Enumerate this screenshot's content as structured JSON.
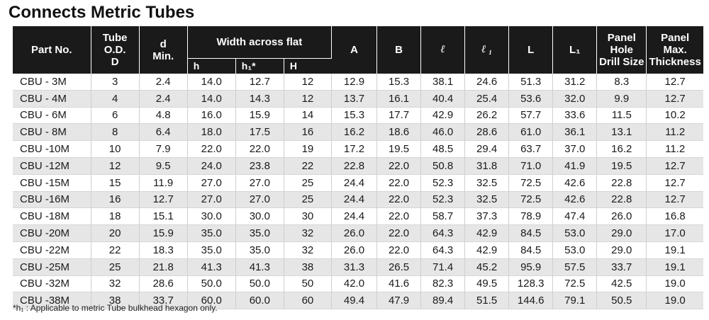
{
  "title": "Connects Metric Tubes",
  "headers": {
    "part_no": "Part No.",
    "tube_od": [
      "Tube",
      "O.D.",
      "D"
    ],
    "d_min": [
      "d",
      "Min."
    ],
    "width_across_flat": "Width across flat",
    "h": "h",
    "h1": "h₁*",
    "H": "H",
    "A": "A",
    "B": "B",
    "l": "ℓ",
    "l1": "ℓ ₁",
    "L": "L",
    "L1": "L₁",
    "panel_hole": [
      "Panel",
      "Hole",
      "Drill Size"
    ],
    "panel_max": [
      "Panel",
      "Max.",
      "Thickness"
    ]
  },
  "rows": [
    [
      "CBU - 3M",
      "3",
      "2.4",
      "14.0",
      "12.7",
      "12",
      "12.9",
      "15.3",
      "38.1",
      "24.6",
      "51.3",
      "31.2",
      "8.3",
      "12.7"
    ],
    [
      "CBU - 4M",
      "4",
      "2.4",
      "14.0",
      "14.3",
      "12",
      "13.7",
      "16.1",
      "40.4",
      "25.4",
      "53.6",
      "32.0",
      "9.9",
      "12.7"
    ],
    [
      "CBU - 6M",
      "6",
      "4.8",
      "16.0",
      "15.9",
      "14",
      "15.3",
      "17.7",
      "42.9",
      "26.2",
      "57.7",
      "33.6",
      "11.5",
      "10.2"
    ],
    [
      "CBU - 8M",
      "8",
      "6.4",
      "18.0",
      "17.5",
      "16",
      "16.2",
      "18.6",
      "46.0",
      "28.6",
      "61.0",
      "36.1",
      "13.1",
      "11.2"
    ],
    [
      "CBU -10M",
      "10",
      "7.9",
      "22.0",
      "22.0",
      "19",
      "17.2",
      "19.5",
      "48.5",
      "29.4",
      "63.7",
      "37.0",
      "16.2",
      "11.2"
    ],
    [
      "CBU -12M",
      "12",
      "9.5",
      "24.0",
      "23.8",
      "22",
      "22.8",
      "22.0",
      "50.8",
      "31.8",
      "71.0",
      "41.9",
      "19.5",
      "12.7"
    ],
    [
      "CBU -15M",
      "15",
      "11.9",
      "27.0",
      "27.0",
      "25",
      "24.4",
      "22.0",
      "52.3",
      "32.5",
      "72.5",
      "42.6",
      "22.8",
      "12.7"
    ],
    [
      "CBU -16M",
      "16",
      "12.7",
      "27.0",
      "27.0",
      "25",
      "24.4",
      "22.0",
      "52.3",
      "32.5",
      "72.5",
      "42.6",
      "22.8",
      "12.7"
    ],
    [
      "CBU -18M",
      "18",
      "15.1",
      "30.0",
      "30.0",
      "30",
      "24.4",
      "22.0",
      "58.7",
      "37.3",
      "78.9",
      "47.4",
      "26.0",
      "16.8"
    ],
    [
      "CBU -20M",
      "20",
      "15.9",
      "35.0",
      "35.0",
      "32",
      "26.0",
      "22.0",
      "64.3",
      "42.9",
      "84.5",
      "53.0",
      "29.0",
      "17.0"
    ],
    [
      "CBU -22M",
      "22",
      "18.3",
      "35.0",
      "35.0",
      "32",
      "26.0",
      "22.0",
      "64.3",
      "42.9",
      "84.5",
      "53.0",
      "29.0",
      "19.1"
    ],
    [
      "CBU -25M",
      "25",
      "21.8",
      "41.3",
      "41.3",
      "38",
      "31.3",
      "26.5",
      "71.4",
      "45.2",
      "95.9",
      "57.5",
      "33.7",
      "19.1"
    ],
    [
      "CBU -32M",
      "32",
      "28.6",
      "50.0",
      "50.0",
      "50",
      "42.0",
      "41.6",
      "82.3",
      "49.5",
      "128.3",
      "72.5",
      "42.5",
      "19.0"
    ],
    [
      "CBU -38M",
      "38",
      "33.7",
      "60.0",
      "60.0",
      "60",
      "49.4",
      "47.9",
      "89.4",
      "51.5",
      "144.6",
      "79.1",
      "50.5",
      "19.0"
    ]
  ],
  "footnote": "*h₁ : Applicable to metric Tube bulkhead hexagon only."
}
